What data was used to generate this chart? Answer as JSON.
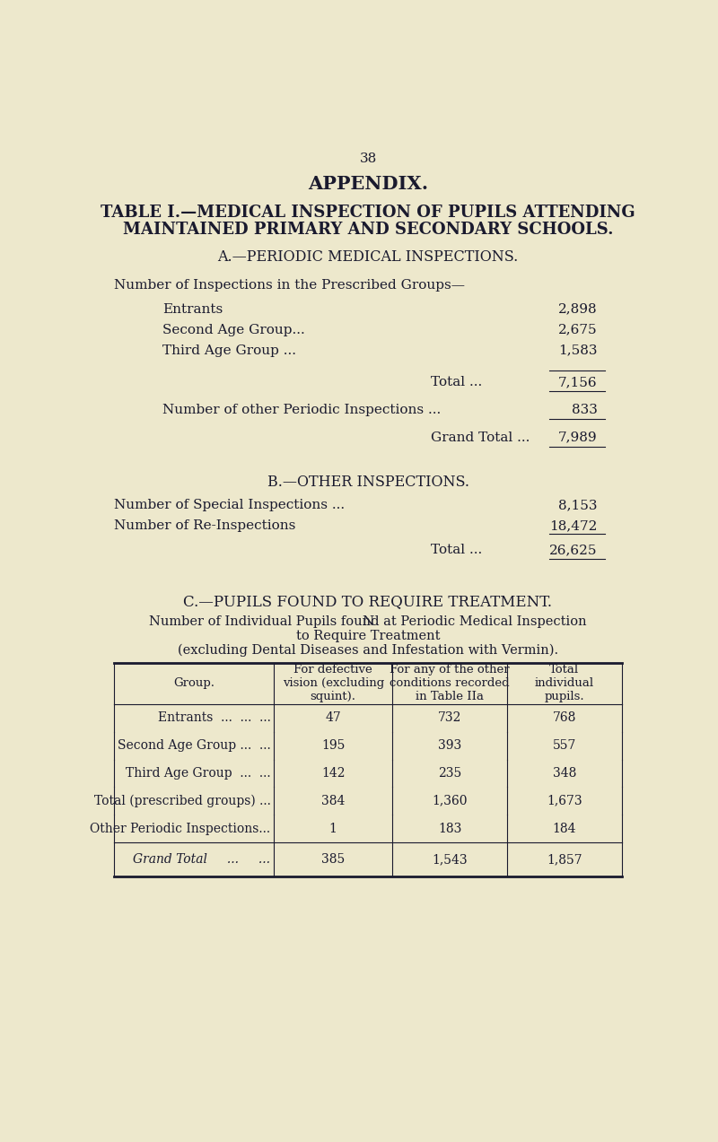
{
  "page_number": "38",
  "bg_color": "#ede8cc",
  "text_color": "#1a1a2e",
  "section_a_rows": [
    [
      "Entrants",
      "2,898"
    ],
    [
      "Second Age Group...",
      "2,675"
    ],
    [
      "Third Age Group ...",
      "1,583"
    ]
  ],
  "section_a_total": "7,156",
  "section_a_other": "833",
  "section_a_grand": "7,989",
  "section_b_rows": [
    [
      "Number of Special Inspections ...",
      "8,153"
    ],
    [
      "Number of Re-Inspections",
      "18,472"
    ]
  ],
  "section_b_total": "26,625",
  "table_headers": [
    "Group.",
    "For defective\nvision (excluding\nsquint).",
    "For any of the other\nconditions recorded\nin Table IIa",
    "Total\nindividual\npupils."
  ],
  "table_rows": [
    [
      "Entrants  ...  ...  ...",
      "47",
      "732",
      "768"
    ],
    [
      "Second Age Group ...  ...",
      "195",
      "393",
      "557"
    ],
    [
      "Third Age Group  ...  ...",
      "142",
      "235",
      "348"
    ],
    [
      "Total (prescribed groups) ...",
      "384",
      "1,360",
      "1,673"
    ],
    [
      "Other Periodic Inspections...",
      "1",
      "183",
      "184"
    ]
  ],
  "table_grand_row": [
    "Grand Total     ...     ...",
    "385",
    "1,543",
    "1,857"
  ]
}
